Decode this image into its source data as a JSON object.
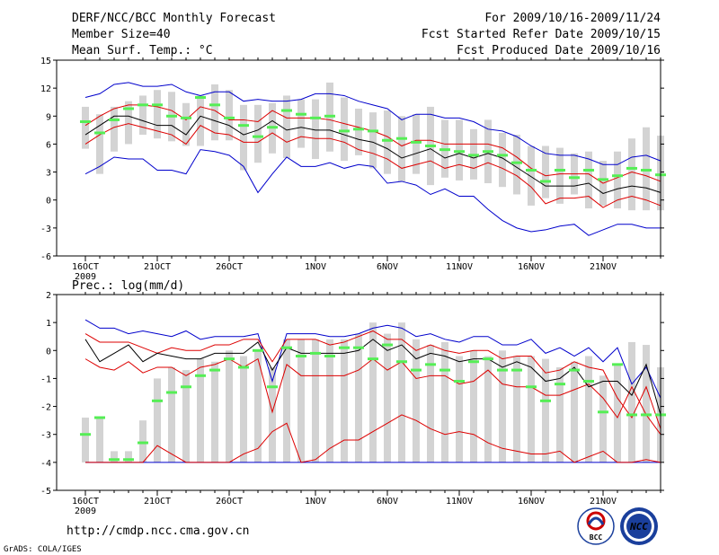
{
  "header": {
    "title_left": "DERF/NCC/BCC Monthly Forecast",
    "member_size": "Member Size=40",
    "variable": "Mean Surf. Temp.: °C",
    "period": "For 2009/10/16-2009/11/24",
    "refer_date": "Fcst Started Refer Date 2009/10/15",
    "produced_date": "Fcst Produced Date 2009/10/16"
  },
  "footer": {
    "url": "http://cmdp.ncc.cma.gov.cn",
    "grads_credit": "GrADS: COLA/IGES",
    "logo_bcc_text": "BCC",
    "logo_ncc_text": "NCC"
  },
  "colors": {
    "box": "#d3d3d3",
    "median": "#55ee55",
    "mean": "#000000",
    "spread": "#dd0000",
    "envelope": "#0000cc"
  },
  "chart_data": [
    {
      "type": "box-ensemble",
      "title": "Mean Surf. Temp.: °C",
      "ylim": [
        -6,
        15
      ],
      "yticks": [
        "15",
        "12",
        "9",
        "6",
        "3",
        "0",
        "-3",
        "-6"
      ],
      "yticks_values": [
        15,
        12,
        9,
        6,
        3,
        0,
        -3,
        -6
      ],
      "xticks": [
        {
          "day": 0,
          "label": "16OCT"
        },
        {
          "day": 5,
          "label": "21OCT"
        },
        {
          "day": 10,
          "label": "26OCT"
        },
        {
          "day": 16,
          "label": "1NOV"
        },
        {
          "day": 21,
          "label": "6NOV"
        },
        {
          "day": 26,
          "label": "11NOV"
        },
        {
          "day": 31,
          "label": "16NOV"
        },
        {
          "day": 36,
          "label": "21NOV"
        }
      ],
      "year_label": "2009",
      "box_low": [
        5.5,
        2.8,
        5.2,
        6,
        7,
        6.6,
        6.3,
        5.8,
        5.8,
        6.4,
        6.4,
        3.2,
        4,
        5,
        4.5,
        5.6,
        4.4,
        5.2,
        4.2,
        4.8,
        3.4,
        2.8,
        2,
        2.8,
        1.6,
        2.4,
        2.1,
        2.2,
        1.8,
        1.4,
        0.6,
        -0.6,
        0.2,
        -0.4,
        0.6,
        -0.9,
        -0.6,
        -0.9,
        -1.1,
        -1.1,
        -1.1
      ],
      "box_high": [
        10,
        9.2,
        10,
        10.6,
        11.2,
        11.8,
        11.6,
        10.4,
        11.2,
        12.4,
        11.8,
        10.2,
        10.2,
        10.4,
        11.2,
        10.8,
        10.8,
        12.6,
        11,
        9.8,
        9.4,
        9.6,
        9,
        9.2,
        10,
        8.6,
        8.6,
        7.6,
        8.6,
        7.2,
        7,
        5.8,
        5.8,
        5.6,
        5,
        5.2,
        4.2,
        5.2,
        6.6,
        7.8,
        6.9
      ],
      "median": [
        8.4,
        7.2,
        8.6,
        9.8,
        10.2,
        10.2,
        9,
        8.8,
        11,
        10.2,
        8.8,
        8,
        6.8,
        7.8,
        9.6,
        9.2,
        8.8,
        9,
        7.4,
        7.6,
        7.4,
        6.4,
        6.6,
        6.2,
        5.8,
        5.4,
        5.2,
        4.8,
        5.2,
        4.8,
        4,
        3.2,
        2,
        3.2,
        2.4,
        3.2,
        2.2,
        2.6,
        3.4,
        3.2,
        2.7
      ],
      "mean": [
        7,
        8,
        9,
        9,
        8.5,
        8,
        8,
        7,
        9,
        8.5,
        8,
        7,
        7.5,
        8.5,
        7.5,
        7.8,
        7.5,
        7.5,
        7,
        6.5,
        6.2,
        5.5,
        4.5,
        5,
        5.5,
        4.5,
        5,
        4.5,
        5,
        4.5,
        3.5,
        2.5,
        1.5,
        1.5,
        1.5,
        1.8,
        0.7,
        1.2,
        1.5,
        1.3,
        0.8
      ],
      "spread_upper": [
        8,
        9,
        9.8,
        10.2,
        10.2,
        10,
        9.6,
        8.6,
        10,
        9.6,
        8.6,
        8.6,
        8.4,
        9.6,
        8.8,
        8.8,
        8.8,
        8.6,
        8.2,
        7.8,
        7.4,
        6.8,
        5.8,
        6.4,
        6.4,
        6,
        6,
        6,
        6,
        5.6,
        4.6,
        3.4,
        2.6,
        2.8,
        2.8,
        2.8,
        1.8,
        2.4,
        3,
        2.6,
        2
      ],
      "spread_lower": [
        6,
        7,
        7.8,
        8.2,
        7.8,
        7.4,
        7,
        6,
        8,
        7.2,
        7,
        6.2,
        6.2,
        7.2,
        6.2,
        6.8,
        6.6,
        6.6,
        6.2,
        5.4,
        5,
        4.4,
        3.4,
        3.8,
        4.2,
        3.4,
        3.8,
        3.4,
        4,
        3.4,
        2.6,
        1.4,
        -0.4,
        0.2,
        0.2,
        0.4,
        -0.8,
        0,
        0.4,
        0,
        -0.6
      ],
      "envelope_upper": [
        11,
        11.4,
        12.4,
        12.6,
        12.2,
        12.2,
        12.4,
        11.6,
        11.2,
        11.6,
        11.6,
        10.6,
        10.8,
        10.6,
        10.6,
        10.8,
        11.4,
        11.4,
        11.2,
        10.6,
        10.2,
        9.8,
        8.6,
        9.2,
        9.2,
        8.8,
        8.8,
        8.4,
        7.6,
        7.4,
        6.8,
        5.8,
        5,
        4.8,
        4.8,
        4.4,
        3.8,
        3.8,
        4.6,
        4.8,
        4.2
      ],
      "envelope_lower": [
        2.8,
        3.6,
        4.6,
        4.4,
        4.4,
        3.2,
        3.2,
        2.8,
        5.4,
        5.2,
        4.8,
        3.6,
        0.8,
        2.8,
        4.6,
        3.6,
        3.6,
        4,
        3.4,
        3.8,
        3.6,
        1.8,
        2,
        1.6,
        0.6,
        1.2,
        0.4,
        0.4,
        -1,
        -2.2,
        -3,
        -3.4,
        -3.2,
        -2.8,
        -2.6,
        -3.8,
        -3.2,
        -2.6,
        -2.6,
        -3,
        -3
      ]
    },
    {
      "type": "box-ensemble",
      "title": "Prec.: log(mm/d)",
      "ylim": [
        -5,
        2
      ],
      "yticks": [
        "2",
        "1",
        "0",
        "-1",
        "-2",
        "-3",
        "-4",
        "-5"
      ],
      "yticks_values": [
        2,
        1,
        0,
        -1,
        -2,
        -3,
        -4,
        -5
      ],
      "xticks": [
        {
          "day": 0,
          "label": "16OCT"
        },
        {
          "day": 5,
          "label": "21OCT"
        },
        {
          "day": 10,
          "label": "26OCT"
        },
        {
          "day": 16,
          "label": "1NOV"
        },
        {
          "day": 21,
          "label": "6NOV"
        },
        {
          "day": 26,
          "label": "11NOV"
        },
        {
          "day": 31,
          "label": "16NOV"
        },
        {
          "day": 36,
          "label": "21NOV"
        }
      ],
      "year_label": "2009",
      "box_low": [
        -4,
        -4,
        -4,
        -4,
        -4,
        -4,
        -4,
        -4,
        -4,
        -4,
        -4,
        -4,
        -4,
        -4,
        -4,
        -4,
        -4,
        -4,
        -4,
        -4,
        -4,
        -4,
        -4,
        -4,
        -4,
        -4,
        -4,
        -4,
        -4,
        -4,
        -4,
        -4,
        -4,
        -4,
        -4,
        -4,
        -4,
        -4,
        -4,
        -4,
        -4
      ],
      "box_high": [
        -2.4,
        -2.4,
        -3.6,
        -3.6,
        -2.5,
        -1,
        -0.6,
        -0.7,
        -0.3,
        -0.4,
        0,
        -0.2,
        0,
        -0.6,
        0.4,
        0.4,
        0.4,
        0.4,
        0.4,
        0.6,
        1,
        0.6,
        1,
        0.4,
        0.2,
        0.3,
        -0.2,
        0,
        -0.2,
        0,
        -0.2,
        -0.2,
        -0.3,
        -0.6,
        -0.4,
        -0.2,
        -0.9,
        -0.5,
        0.3,
        0.2,
        -0.6
      ],
      "median": [
        -3,
        -2.4,
        -3.9,
        -3.9,
        -3.3,
        -1.8,
        -1.5,
        -1.3,
        -0.9,
        -0.7,
        -0.3,
        -0.6,
        0,
        -1.3,
        0.1,
        -0.2,
        -0.1,
        -0.2,
        0.1,
        0.1,
        -0.3,
        0.2,
        -0.4,
        -0.7,
        -0.5,
        -0.7,
        -1.1,
        -0.4,
        -0.3,
        -0.7,
        -0.7,
        -1.3,
        -1.8,
        -1.2,
        -0.7,
        -1.1,
        -2.2,
        -0.5,
        -2.3,
        -2.3,
        -2.3
      ],
      "mean": [
        0.4,
        -0.4,
        -0.1,
        0.2,
        -0.4,
        -0.1,
        -0.2,
        -0.3,
        -0.3,
        -0.1,
        -0.1,
        -0.1,
        0.3,
        -0.7,
        0.1,
        -0.1,
        -0.1,
        -0.1,
        -0.1,
        0,
        0.4,
        0,
        0.2,
        -0.3,
        -0.1,
        -0.2,
        -0.4,
        -0.3,
        -0.3,
        -0.6,
        -0.4,
        -0.6,
        -1.1,
        -1,
        -0.6,
        -1.3,
        -1.1,
        -1.1,
        -1.6,
        -0.5,
        -2.3
      ],
      "spread_upper": [
        0.6,
        0.3,
        0.3,
        0.3,
        0.1,
        -0.1,
        0.1,
        0,
        0,
        0.2,
        0.2,
        0.4,
        0.4,
        -0.4,
        0.4,
        0.4,
        0.4,
        0.2,
        0.3,
        0.5,
        0.7,
        0.4,
        0.4,
        0,
        0.2,
        0,
        -0.1,
        0,
        0,
        -0.3,
        -0.2,
        -0.2,
        -0.8,
        -0.7,
        -0.4,
        -0.6,
        -0.7,
        -1.7,
        -2.4,
        -1.3,
        -2.8
      ],
      "spread_lower": [
        -0.3,
        -0.6,
        -0.7,
        -0.4,
        -0.8,
        -0.6,
        -0.6,
        -0.9,
        -0.6,
        -0.5,
        -0.3,
        -0.6,
        -0.3,
        -2.2,
        -0.5,
        -0.9,
        -0.9,
        -0.9,
        -0.9,
        -0.7,
        -0.3,
        -0.7,
        -0.4,
        -1,
        -0.9,
        -0.9,
        -1.2,
        -1.1,
        -0.7,
        -1.2,
        -1.3,
        -1.3,
        -1.6,
        -1.6,
        -1.4,
        -1.2,
        -1.7,
        -2.4,
        -1.3,
        -2.3,
        -3
      ],
      "envelope_upper": [
        1.1,
        0.8,
        0.8,
        0.6,
        0.7,
        0.6,
        0.5,
        0.7,
        0.4,
        0.5,
        0.5,
        0.5,
        0.6,
        -1.1,
        0.6,
        0.6,
        0.6,
        0.5,
        0.5,
        0.6,
        0.8,
        0.9,
        0.8,
        0.5,
        0.6,
        0.4,
        0.3,
        0.5,
        0.5,
        0.2,
        0.2,
        0.4,
        -0.1,
        0.1,
        -0.2,
        0.1,
        -0.4,
        0.1,
        -1.2,
        -0.6,
        -1.7
      ],
      "envelope_lower": [
        -4,
        -4,
        -4,
        -4,
        -4,
        -4,
        -4,
        -4,
        -4,
        -4,
        -4,
        -4,
        -4,
        -4,
        -4,
        -4,
        -4,
        -4,
        -4,
        -4,
        -4,
        -4,
        -4,
        -4,
        -4,
        -4,
        -4,
        -4,
        -4,
        -4,
        -4,
        -4,
        -4,
        -4,
        -4,
        -4,
        -4,
        -4,
        -4,
        -4,
        -4
      ],
      "inner_red_lower_note": "lowest red member curve",
      "inner_red_lower": [
        -4,
        -4,
        -4,
        -4,
        -4,
        -3.4,
        -3.7,
        -4,
        -4,
        -4,
        -4,
        -3.7,
        -3.5,
        -2.9,
        -2.6,
        -4,
        -3.9,
        -3.5,
        -3.2,
        -3.2,
        -2.9,
        -2.6,
        -2.3,
        -2.5,
        -2.8,
        -3,
        -2.9,
        -3,
        -3.3,
        -3.5,
        -3.6,
        -3.7,
        -3.7,
        -3.6,
        -4,
        -3.8,
        -3.6,
        -4,
        -4,
        -3.9,
        -4
      ]
    }
  ]
}
